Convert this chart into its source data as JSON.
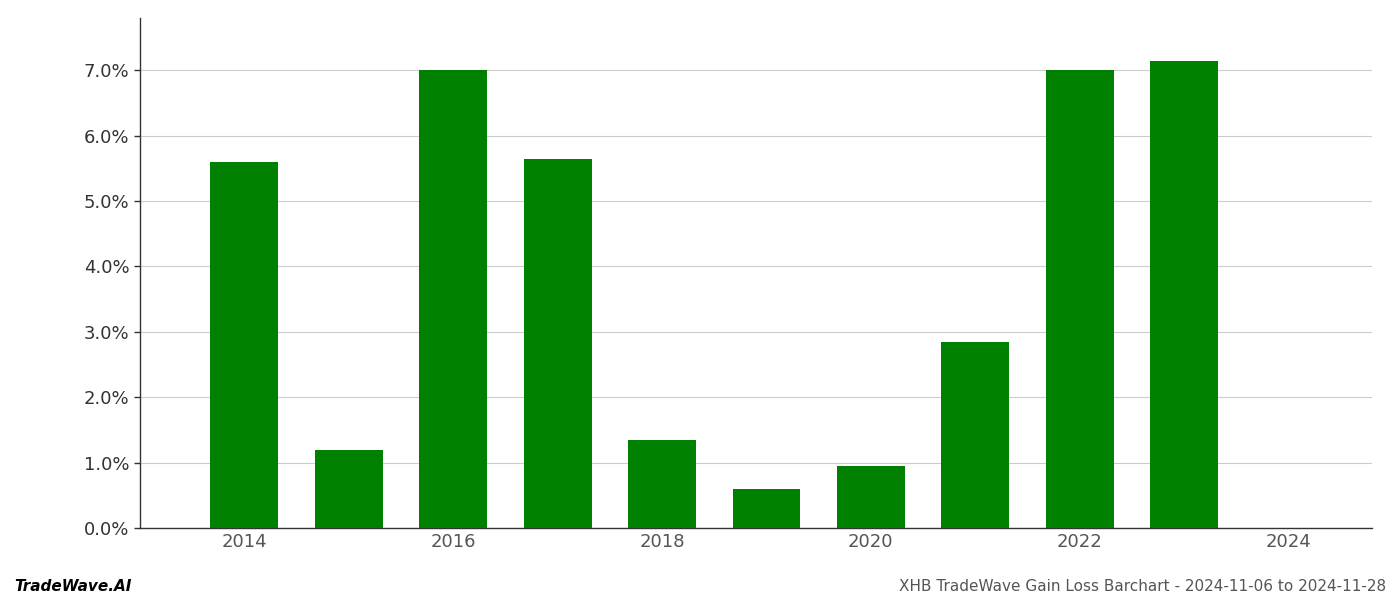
{
  "years": [
    2014,
    2015,
    2016,
    2017,
    2018,
    2019,
    2020,
    2021,
    2022,
    2023
  ],
  "values": [
    0.056,
    0.012,
    0.07,
    0.0565,
    0.0135,
    0.006,
    0.0095,
    0.0285,
    0.07,
    0.0715
  ],
  "bar_color": "#008000",
  "background_color": "#ffffff",
  "grid_color": "#cccccc",
  "ylim": [
    0,
    0.078
  ],
  "yticks": [
    0.0,
    0.01,
    0.02,
    0.03,
    0.04,
    0.05,
    0.06,
    0.07
  ],
  "xtick_labels": [
    "2014",
    "2016",
    "2018",
    "2020",
    "2022",
    "2024"
  ],
  "xtick_positions": [
    2014,
    2016,
    2018,
    2020,
    2022,
    2024
  ],
  "xlim_left": 2013.0,
  "xlim_right": 2024.8,
  "footer_left": "TradeWave.AI",
  "footer_right": "XHB TradeWave Gain Loss Barchart - 2024-11-06 to 2024-11-28",
  "ytick_fontsize": 13,
  "xtick_fontsize": 13,
  "footer_fontsize": 11,
  "bar_width": 0.65,
  "tick_color": "#555555",
  "spine_color": "#333333",
  "footer_left_color": "#000000",
  "footer_right_color": "#555555"
}
